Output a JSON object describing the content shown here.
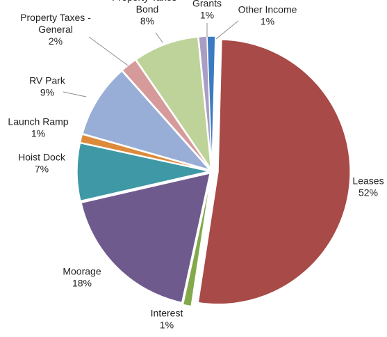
{
  "chart_data": {
    "type": "pie",
    "title": "",
    "legend": "none",
    "slices": [
      {
        "label": "Leases",
        "value": 52,
        "percent_label": "52%",
        "color": "#A84A48"
      },
      {
        "label": "Interest",
        "value": 1,
        "percent_label": "1%",
        "color": "#82A94A"
      },
      {
        "label": "Moorage",
        "value": 18,
        "percent_label": "18%",
        "color": "#6F5A8D"
      },
      {
        "label": "Hoist Dock",
        "value": 7,
        "percent_label": "7%",
        "color": "#3F98A6"
      },
      {
        "label": "Launch Ramp",
        "value": 1,
        "percent_label": "1%",
        "color": "#DD8A3B"
      },
      {
        "label": "RV Park",
        "value": 9,
        "percent_label": "9%",
        "color": "#98AED6"
      },
      {
        "label": "Property Taxes - General",
        "value": 2,
        "percent_label": "2%",
        "color": "#D69A9A"
      },
      {
        "label": "Property Taxes - Bond",
        "value": 8,
        "percent_label": "8%",
        "color": "#BED399"
      },
      {
        "label": "Grants",
        "value": 1,
        "percent_label": "1%",
        "color": "#A99DC4"
      },
      {
        "label": "Other Income",
        "value": 1,
        "percent_label": "1%",
        "color": "#3C7BC1"
      }
    ]
  }
}
